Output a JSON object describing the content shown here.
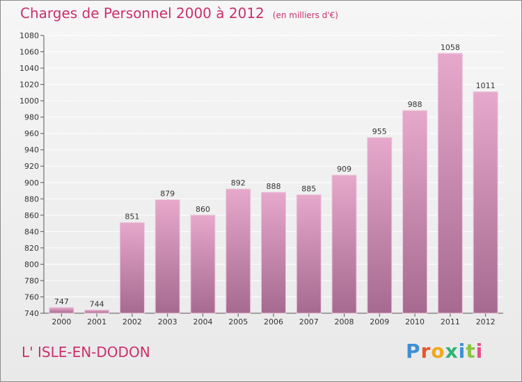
{
  "header": {
    "title": "Charges de Personnel 2000 à 2012",
    "subtitle": "(en milliers d'€)"
  },
  "footer": {
    "commune": "L' ISLE-EN-DODON",
    "logo_text": "Proxiti"
  },
  "colors": {
    "title": "#c9306c",
    "bar_top": "#e6a8cb",
    "bar_bottom": "#a66a90",
    "logo_letters": [
      "#3e8fd6",
      "#e8552c",
      "#f0a81c",
      "#2bb673",
      "#3e8fd6",
      "#8bc53f",
      "#e84d8a"
    ]
  },
  "chart_data": {
    "type": "bar",
    "title": "Charges de Personnel 2000 à 2012",
    "subtitle": "(en milliers d'€)",
    "categories": [
      "2000",
      "2001",
      "2002",
      "2003",
      "2004",
      "2005",
      "2006",
      "2007",
      "2008",
      "2009",
      "2010",
      "2011",
      "2012"
    ],
    "values": [
      747,
      744,
      851,
      879,
      860,
      892,
      888,
      885,
      909,
      955,
      988,
      1058,
      1011
    ],
    "ylim": [
      740,
      1080
    ],
    "yticks": [
      740,
      760,
      780,
      800,
      820,
      840,
      860,
      880,
      900,
      920,
      940,
      960,
      980,
      1000,
      1020,
      1040,
      1060,
      1080
    ],
    "grid": true,
    "data_labels": true
  }
}
